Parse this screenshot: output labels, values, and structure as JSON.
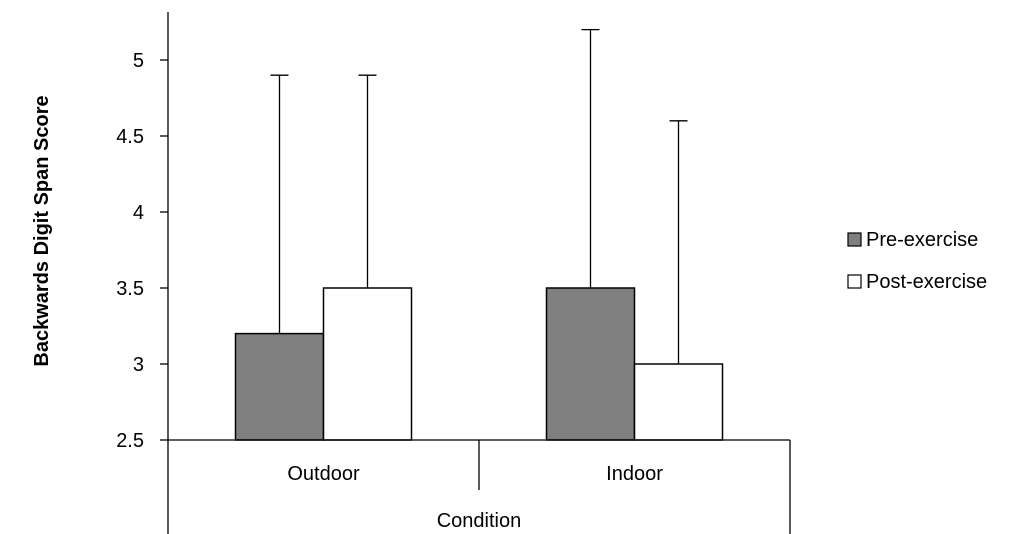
{
  "chart_data": {
    "type": "bar",
    "title": "",
    "xlabel": "Condition",
    "ylabel": "Backwards Digit Span Score",
    "categories": [
      "Outdoor",
      "Indoor"
    ],
    "ylim": [
      2.5,
      5.25
    ],
    "yticks": [
      "2.5",
      "3",
      "3.5",
      "4",
      "4.5",
      "5"
    ],
    "series": [
      {
        "name": "Pre-exercise",
        "values": [
          3.2,
          3.5
        ],
        "error_upper": [
          4.9,
          5.2
        ],
        "color": "#808080"
      },
      {
        "name": "Post-exercise",
        "values": [
          3.5,
          3.0
        ],
        "error_upper": [
          4.9,
          4.6
        ],
        "color": "#ffffff"
      }
    ],
    "grid": false,
    "legend_position": "right"
  }
}
